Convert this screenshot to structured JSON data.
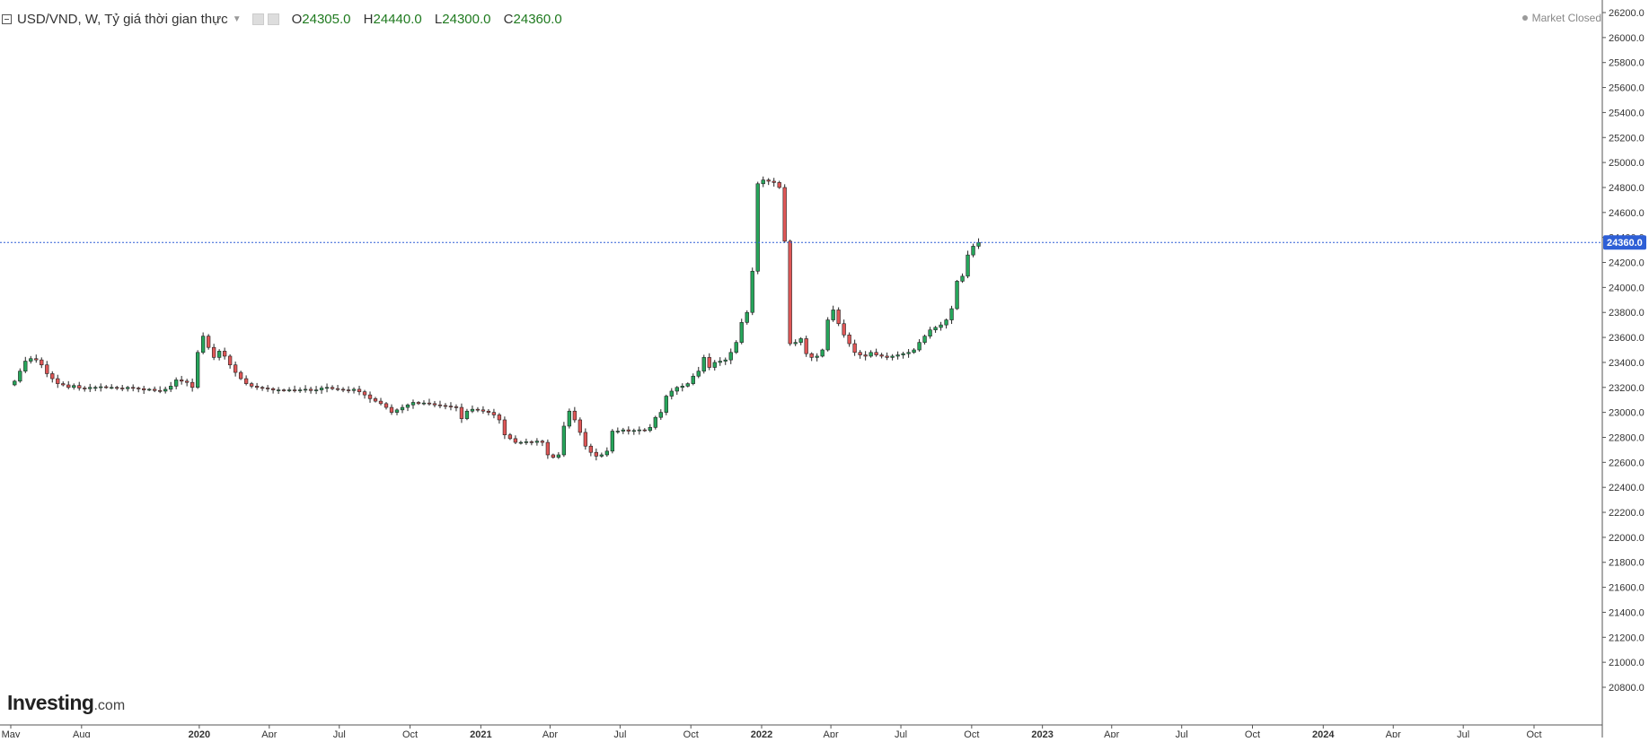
{
  "header": {
    "symbol_title": "USD/VND, W, Tỷ giá thời gian thực",
    "ohlc": [
      {
        "key": "O",
        "value": "24305.0"
      },
      {
        "key": "H",
        "value": "24440.0"
      },
      {
        "key": "L",
        "value": "24300.0"
      },
      {
        "key": "C",
        "value": "24360.0"
      }
    ],
    "market_status": "Market Closed"
  },
  "logo": {
    "main": "Investing",
    "suffix": ".com"
  },
  "colors": {
    "up": "#26a65b",
    "down": "#e05757",
    "price_line": "#2e5fd6",
    "axis": "#555555",
    "badge": "#2e5fd6"
  },
  "chart_data": {
    "type": "candlestick",
    "interval": "W",
    "price_label": "24360.0",
    "ylim": [
      20800,
      26200
    ],
    "yticks": [
      "26200.0",
      "26000.0",
      "25800.0",
      "25600.0",
      "25400.0",
      "25200.0",
      "25000.0",
      "24800.0",
      "24600.0",
      "24400.0",
      "24200.0",
      "24000.0",
      "23800.0",
      "23600.0",
      "23400.0",
      "23200.0",
      "23000.0",
      "22800.0",
      "22600.0",
      "22400.0",
      "22200.0",
      "22000.0",
      "21800.0",
      "21600.0",
      "21400.0",
      "21200.0",
      "21000.0",
      "20800.0"
    ],
    "xticks": [
      {
        "label": "May",
        "date": "2019-05-01",
        "bold": false
      },
      {
        "label": "Aug",
        "date": "2019-08-01",
        "bold": false
      },
      {
        "label": "2020",
        "date": "2020-01-01",
        "bold": true
      },
      {
        "label": "Apr",
        "date": "2020-04-01",
        "bold": false
      },
      {
        "label": "Jul",
        "date": "2020-07-01",
        "bold": false
      },
      {
        "label": "Oct",
        "date": "2020-10-01",
        "bold": false
      },
      {
        "label": "2021",
        "date": "2021-01-01",
        "bold": true
      },
      {
        "label": "Apr",
        "date": "2021-04-01",
        "bold": false
      },
      {
        "label": "Jul",
        "date": "2021-07-01",
        "bold": false
      },
      {
        "label": "Oct",
        "date": "2021-10-01",
        "bold": false
      },
      {
        "label": "2022",
        "date": "2022-01-01",
        "bold": true
      },
      {
        "label": "Apr",
        "date": "2022-04-01",
        "bold": false
      },
      {
        "label": "Jul",
        "date": "2022-07-01",
        "bold": false
      },
      {
        "label": "Oct",
        "date": "2022-10-01",
        "bold": false
      },
      {
        "label": "2023",
        "date": "2023-01-01",
        "bold": true
      },
      {
        "label": "Apr",
        "date": "2023-04-01",
        "bold": false
      },
      {
        "label": "Jul",
        "date": "2023-07-01",
        "bold": false
      },
      {
        "label": "Oct",
        "date": "2023-10-01",
        "bold": false
      },
      {
        "label": "2024",
        "date": "2024-01-01",
        "bold": true
      },
      {
        "label": "Apr",
        "date": "2024-04-01",
        "bold": false
      },
      {
        "label": "Jul",
        "date": "2024-07-01",
        "bold": false
      },
      {
        "label": "Oct",
        "date": "2024-10-01",
        "bold": false
      }
    ],
    "first_week": "2019-05-06",
    "close": [
      23250,
      23330,
      23410,
      23430,
      23420,
      23380,
      23310,
      23270,
      23230,
      23220,
      23200,
      23215,
      23195,
      23190,
      23200,
      23200,
      23205,
      23200,
      23200,
      23195,
      23190,
      23200,
      23195,
      23190,
      23180,
      23185,
      23175,
      23170,
      23185,
      23210,
      23260,
      23250,
      23240,
      23200,
      23480,
      23610,
      23520,
      23440,
      23490,
      23450,
      23380,
      23320,
      23270,
      23230,
      23210,
      23200,
      23195,
      23190,
      23180,
      23180,
      23175,
      23180,
      23175,
      23180,
      23185,
      23175,
      23180,
      23195,
      23200,
      23190,
      23185,
      23180,
      23175,
      23185,
      23165,
      23140,
      23110,
      23090,
      23070,
      23040,
      23000,
      23020,
      23040,
      23060,
      23080,
      23070,
      23075,
      23070,
      23060,
      23055,
      23050,
      23045,
      23040,
      22950,
      23010,
      23025,
      23020,
      23010,
      23000,
      22980,
      22940,
      22820,
      22790,
      22760,
      22760,
      22765,
      22760,
      22770,
      22760,
      22660,
      22640,
      22660,
      22890,
      23010,
      22940,
      22840,
      22730,
      22680,
      22650,
      22660,
      22690,
      22850,
      22850,
      22860,
      22850,
      22855,
      22860,
      22855,
      22880,
      22960,
      23000,
      23130,
      23170,
      23200,
      23210,
      23230,
      23290,
      23330,
      23440,
      23360,
      23400,
      23410,
      23420,
      23480,
      23560,
      23720,
      23800,
      24130,
      24830,
      24860,
      24850,
      24840,
      24800,
      24370,
      23550,
      23560,
      23590,
      23470,
      23440,
      23450,
      23500,
      23740,
      23820,
      23710,
      23620,
      23550,
      23480,
      23460,
      23450,
      23480,
      23460,
      23450,
      23440,
      23450,
      23460,
      23470,
      23480,
      23500,
      23560,
      23610,
      23660,
      23680,
      23700,
      23740,
      23830,
      24050,
      24090,
      24260,
      24330,
      24360
    ]
  }
}
